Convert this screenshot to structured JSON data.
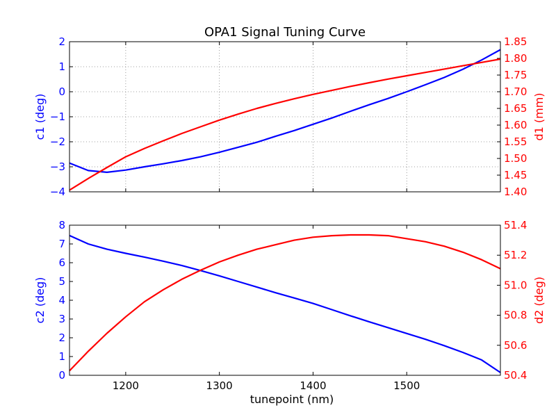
{
  "title": "OPA1 Signal Tuning Curve",
  "colors": {
    "left_axis": "#0000ff",
    "right_axis": "#ff0000",
    "frame": "#000000"
  },
  "chart_data": [
    {
      "type": "line",
      "title": "OPA1 Signal Tuning Curve",
      "xlabel": "",
      "xlim": [
        1140,
        1600
      ],
      "x_ticks": [
        1200,
        1300,
        1400,
        1500
      ],
      "x_tick_labels_shown": false,
      "grid": true,
      "left_axis": {
        "label": "c1 (deg)",
        "color": "#0000ff",
        "ylim": [
          -4,
          2
        ],
        "ticks": [
          -4,
          -3,
          -2,
          -1,
          0,
          1,
          2
        ],
        "tick_labels": [
          "−4",
          "−3",
          "−2",
          "−1",
          "0",
          "1",
          "2"
        ]
      },
      "right_axis": {
        "label": "d1 (mm)",
        "color": "#ff0000",
        "ylim": [
          1.4,
          1.85
        ],
        "ticks": [
          1.4,
          1.45,
          1.5,
          1.55,
          1.6,
          1.65,
          1.7,
          1.75,
          1.8,
          1.85
        ],
        "tick_labels": [
          "1.40",
          "1.45",
          "1.50",
          "1.55",
          "1.60",
          "1.65",
          "1.70",
          "1.75",
          "1.80",
          "1.85"
        ]
      },
      "series": [
        {
          "axis": "left",
          "color": "#0000ff",
          "x": [
            1140,
            1160,
            1180,
            1200,
            1220,
            1240,
            1260,
            1280,
            1300,
            1320,
            1340,
            1360,
            1380,
            1400,
            1420,
            1440,
            1460,
            1480,
            1500,
            1520,
            1540,
            1560,
            1580,
            1600
          ],
          "y": [
            -2.85,
            -3.15,
            -3.22,
            -3.13,
            -3.0,
            -2.88,
            -2.75,
            -2.6,
            -2.42,
            -2.22,
            -2.02,
            -1.78,
            -1.55,
            -1.3,
            -1.05,
            -0.78,
            -0.52,
            -0.27,
            0.0,
            0.28,
            0.57,
            0.9,
            1.27,
            1.68
          ]
        },
        {
          "axis": "right",
          "color": "#ff0000",
          "x": [
            1140,
            1160,
            1180,
            1200,
            1220,
            1240,
            1260,
            1280,
            1300,
            1320,
            1340,
            1360,
            1380,
            1400,
            1420,
            1440,
            1460,
            1480,
            1500,
            1520,
            1540,
            1560,
            1580,
            1600
          ],
          "y": [
            1.405,
            1.44,
            1.473,
            1.505,
            1.53,
            1.553,
            1.575,
            1.595,
            1.615,
            1.633,
            1.65,
            1.665,
            1.679,
            1.692,
            1.704,
            1.716,
            1.727,
            1.738,
            1.748,
            1.758,
            1.768,
            1.778,
            1.788,
            1.798
          ]
        }
      ]
    },
    {
      "type": "line",
      "title": "",
      "xlabel": "tunepoint (nm)",
      "xlim": [
        1140,
        1600
      ],
      "x_ticks": [
        1200,
        1300,
        1400,
        1500
      ],
      "x_tick_labels": [
        "1200",
        "1300",
        "1400",
        "1500"
      ],
      "grid": false,
      "left_axis": {
        "label": "c2 (deg)",
        "color": "#0000ff",
        "ylim": [
          0,
          8
        ],
        "ticks": [
          0,
          1,
          2,
          3,
          4,
          5,
          6,
          7,
          8
        ],
        "tick_labels": [
          "0",
          "1",
          "2",
          "3",
          "4",
          "5",
          "6",
          "7",
          "8"
        ]
      },
      "right_axis": {
        "label": "d2 (deg)",
        "color": "#ff0000",
        "ylim": [
          50.4,
          51.4
        ],
        "ticks": [
          50.4,
          50.6,
          50.8,
          51.0,
          51.2,
          51.4
        ],
        "tick_labels": [
          "50.4",
          "50.6",
          "50.8",
          "51.0",
          "51.2",
          "51.4"
        ]
      },
      "series": [
        {
          "axis": "left",
          "color": "#0000ff",
          "x": [
            1140,
            1160,
            1180,
            1200,
            1220,
            1240,
            1260,
            1280,
            1300,
            1320,
            1340,
            1360,
            1380,
            1400,
            1420,
            1440,
            1460,
            1480,
            1500,
            1520,
            1540,
            1560,
            1580,
            1600
          ],
          "y": [
            7.45,
            7.0,
            6.72,
            6.5,
            6.3,
            6.08,
            5.85,
            5.58,
            5.3,
            5.0,
            4.7,
            4.4,
            4.12,
            3.83,
            3.5,
            3.17,
            2.85,
            2.54,
            2.23,
            1.92,
            1.58,
            1.22,
            0.82,
            0.15
          ]
        },
        {
          "axis": "right",
          "color": "#ff0000",
          "x": [
            1140,
            1160,
            1180,
            1200,
            1220,
            1240,
            1260,
            1280,
            1300,
            1320,
            1340,
            1360,
            1380,
            1400,
            1420,
            1440,
            1460,
            1480,
            1500,
            1520,
            1540,
            1560,
            1580,
            1600
          ],
          "y": [
            50.43,
            50.56,
            50.68,
            50.79,
            50.89,
            50.97,
            51.04,
            51.1,
            51.155,
            51.2,
            51.24,
            51.27,
            51.3,
            51.32,
            51.33,
            51.335,
            51.335,
            51.33,
            51.31,
            51.29,
            51.26,
            51.22,
            51.17,
            51.11
          ]
        }
      ]
    }
  ]
}
